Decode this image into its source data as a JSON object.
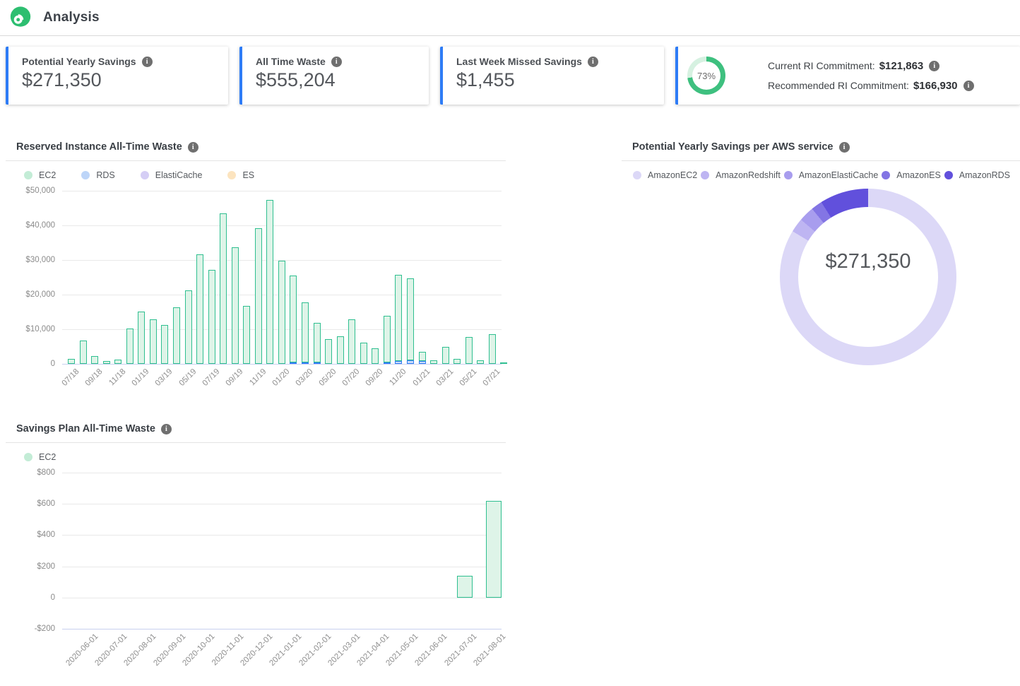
{
  "header": {
    "title": "Analysis"
  },
  "cards": [
    {
      "label": "Potential Yearly Savings",
      "value": "$271,350"
    },
    {
      "label": "All Time Waste",
      "value": "$555,204"
    },
    {
      "label": "Last Week Missed Savings",
      "value": "$1,455"
    }
  ],
  "commitment_card": {
    "percent": 73,
    "percent_label": "73%",
    "rows": [
      {
        "label": "Current RI Commitment:",
        "value": "$121,863"
      },
      {
        "label": "Recommended RI Commitment:",
        "value": "$166,930"
      }
    ]
  },
  "colors": {
    "accent_blue": "#2e7cf6",
    "logo_green": "#2dbe70",
    "ring_green": "#3ec07f",
    "ring_track": "#d6f1e1"
  },
  "chart_data": [
    {
      "type": "bar",
      "title": "Reserved Instance All-Time Waste",
      "stacked": true,
      "legend": [
        {
          "name": "EC2",
          "color": "#c3ecd6"
        },
        {
          "name": "RDS",
          "color": "#bdd5f8"
        },
        {
          "name": "ElastiCache",
          "color": "#d5cef5"
        },
        {
          "name": "ES",
          "color": "#fce4bf"
        }
      ],
      "categories": [
        "07/18",
        "08/18",
        "09/18",
        "10/18",
        "11/18",
        "12/18",
        "01/19",
        "02/19",
        "03/19",
        "04/19",
        "05/19",
        "06/19",
        "07/19",
        "08/19",
        "09/19",
        "10/19",
        "11/19",
        "12/19",
        "01/20",
        "02/20",
        "03/20",
        "04/20",
        "05/20",
        "06/20",
        "07/20",
        "08/20",
        "09/20",
        "10/20",
        "11/20",
        "12/20",
        "01/21",
        "02/21",
        "03/21",
        "04/21",
        "05/21",
        "06/21",
        "07/21",
        "08/21"
      ],
      "label_every": 2,
      "ylim": [
        0,
        50000
      ],
      "yticks": [
        {
          "label": "$50,000",
          "value": 50000
        },
        {
          "label": "$40,000",
          "value": 40000
        },
        {
          "label": "$30,000",
          "value": 30000
        },
        {
          "label": "$20,000",
          "value": 20000
        },
        {
          "label": "$10,000",
          "value": 10000
        },
        {
          "label": "0",
          "value": 0
        }
      ],
      "series": [
        {
          "name": "RDS",
          "fill": "#cadcf9",
          "stroke": "#2f7cf6",
          "values": [
            0,
            0,
            0,
            0,
            0,
            0,
            0,
            0,
            0,
            0,
            0,
            0,
            0,
            0,
            0,
            0,
            0,
            0,
            0,
            500,
            400,
            400,
            0,
            0,
            0,
            0,
            0,
            500,
            900,
            1000,
            800,
            0,
            0,
            0,
            0,
            0,
            0,
            0
          ]
        },
        {
          "name": "EC2",
          "fill": "#def4e8",
          "stroke": "#2fbf90",
          "values": [
            1400,
            6700,
            2300,
            900,
            1200,
            10200,
            15100,
            12900,
            11300,
            16400,
            21300,
            31700,
            27200,
            43500,
            33700,
            16800,
            39200,
            47400,
            29800,
            25100,
            17300,
            11500,
            7200,
            8000,
            12900,
            6100,
            4500,
            13400,
            24900,
            23600,
            2600,
            1000,
            4900,
            1500,
            7700,
            1000,
            8600,
            300
          ]
        }
      ]
    },
    {
      "type": "pie",
      "title": "Potential Yearly Savings per AWS service",
      "center_label": "$271,350",
      "slices": [
        {
          "name": "AmazonEC2",
          "value": 227000,
          "color": "#dcd8f7"
        },
        {
          "name": "AmazonRedshift",
          "value": 7000,
          "color": "#beb5f2"
        },
        {
          "name": "AmazonElastiCache",
          "value": 7600,
          "color": "#a89dee"
        },
        {
          "name": "AmazonES",
          "value": 5600,
          "color": "#8375e4"
        },
        {
          "name": "AmazonRDS",
          "value": 24150,
          "color": "#6150dc"
        }
      ]
    },
    {
      "type": "bar",
      "title": "Savings Plan All-Time Waste",
      "stacked": false,
      "legend": [
        {
          "name": "EC2",
          "color": "#c3ecd6"
        }
      ],
      "categories": [
        "2020-06-01",
        "2020-07-01",
        "2020-08-01",
        "2020-09-01",
        "2020-10-01",
        "2020-11-01",
        "2020-12-01",
        "2021-01-01",
        "2021-02-01",
        "2021-03-01",
        "2021-04-01",
        "2021-05-01",
        "2021-06-01",
        "2021-07-01",
        "2021-08-01"
      ],
      "label_every": 1,
      "ylim": [
        -200,
        800
      ],
      "yticks": [
        {
          "label": "$800",
          "value": 800
        },
        {
          "label": "$600",
          "value": 600
        },
        {
          "label": "$400",
          "value": 400
        },
        {
          "label": "$200",
          "value": 200
        },
        {
          "label": "0",
          "value": 0
        },
        {
          "label": "-$200",
          "value": -200
        }
      ],
      "series": [
        {
          "name": "EC2",
          "fill": "#def4e8",
          "stroke": "#2fbf90",
          "values": [
            0,
            0,
            0,
            0,
            0,
            0,
            0,
            0,
            0,
            0,
            0,
            0,
            0,
            140,
            620
          ]
        }
      ]
    }
  ]
}
